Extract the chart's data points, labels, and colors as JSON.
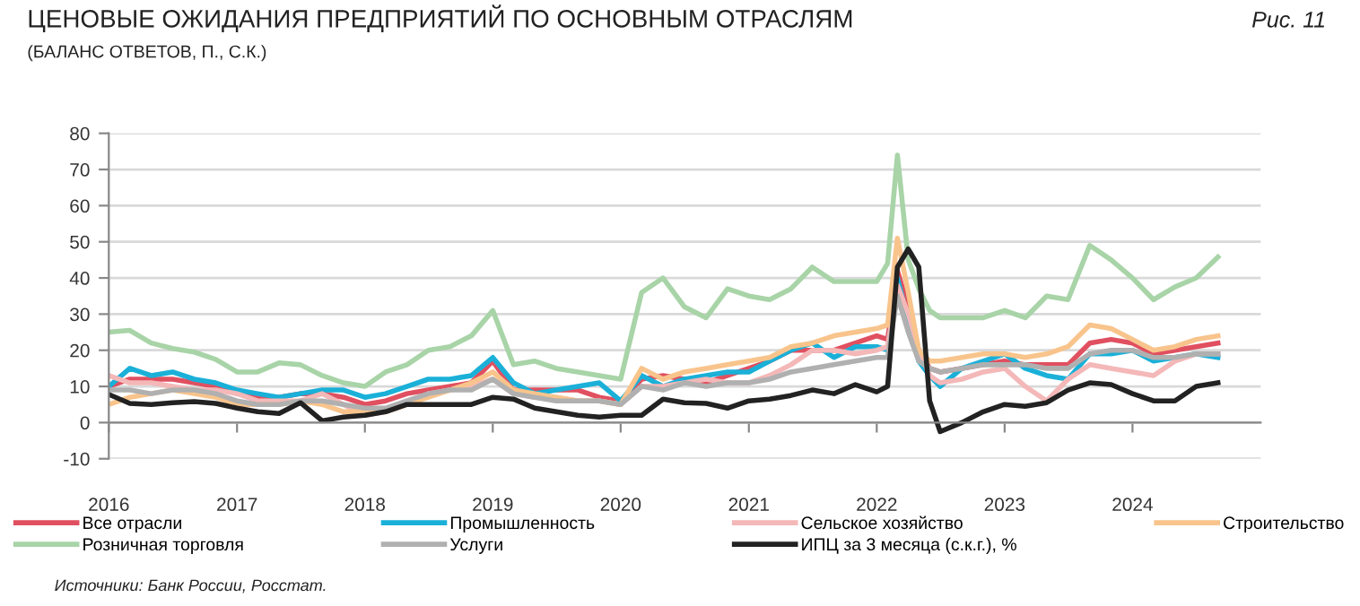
{
  "chart_data": {
    "type": "line",
    "title": "ЦЕНОВЫЕ ОЖИДАНИЯ ПРЕДПРИЯТИЙ ПО ОСНОВНЫМ ОТРАСЛЯМ",
    "subtitle": "(БАЛАНС ОТВЕТОВ, П., С.К.)",
    "annotations": [
      "Рис. 11",
      "Источники: Банк России, Росстат."
    ],
    "x": [
      "2016-01",
      "2016-03",
      "2016-05",
      "2016-07",
      "2016-09",
      "2016-11",
      "2017-01",
      "2017-03",
      "2017-05",
      "2017-07",
      "2017-09",
      "2017-11",
      "2018-01",
      "2018-03",
      "2018-05",
      "2018-07",
      "2018-09",
      "2018-11",
      "2019-01",
      "2019-03",
      "2019-05",
      "2019-07",
      "2019-09",
      "2019-11",
      "2020-01",
      "2020-03",
      "2020-05",
      "2020-07",
      "2020-09",
      "2020-11",
      "2021-01",
      "2021-03",
      "2021-05",
      "2021-07",
      "2021-09",
      "2021-11",
      "2022-01",
      "2022-02",
      "2022-03",
      "2022-04",
      "2022-05",
      "2022-06",
      "2022-07",
      "2022-09",
      "2022-11",
      "2023-01",
      "2023-03",
      "2023-05",
      "2023-07",
      "2023-09",
      "2023-11",
      "2024-01",
      "2024-03",
      "2024-05",
      "2024-07",
      "2024-09"
    ],
    "series": [
      {
        "name": "Все отрасли",
        "color": "#e05060",
        "values": [
          10,
          12,
          12,
          12,
          11,
          10,
          8,
          7,
          7,
          8,
          8,
          7,
          5,
          6,
          8,
          9,
          10,
          11,
          17,
          9,
          9,
          9,
          9,
          7,
          6,
          12,
          13,
          12,
          11,
          13,
          15,
          17,
          20,
          20,
          20,
          22,
          24,
          23,
          42,
          32,
          20,
          15,
          14,
          15,
          16,
          17,
          16,
          16,
          16,
          22,
          23,
          22,
          19,
          20,
          21,
          22
        ]
      },
      {
        "name": "Промышленность",
        "color": "#1ab0d8",
        "values": [
          10,
          15,
          13,
          14,
          12,
          11,
          9,
          8,
          7,
          8,
          9,
          9,
          7,
          8,
          10,
          12,
          12,
          13,
          18,
          11,
          8,
          9,
          10,
          11,
          6,
          13,
          10,
          12,
          13,
          14,
          14,
          17,
          20,
          22,
          18,
          21,
          21,
          20,
          40,
          28,
          17,
          13,
          10,
          15,
          17,
          19,
          15,
          13,
          12,
          19,
          19,
          20,
          17,
          18,
          19,
          18
        ]
      },
      {
        "name": "Сельское хозяйство",
        "color": "#f4b8b8",
        "values": [
          13,
          11,
          11,
          10,
          9,
          9,
          8,
          6,
          6,
          6,
          8,
          5,
          2,
          3,
          5,
          8,
          9,
          10,
          12,
          8,
          7,
          7,
          6,
          6,
          5,
          10,
          10,
          11,
          12,
          11,
          11,
          13,
          16,
          20,
          20,
          19,
          20,
          21,
          38,
          30,
          20,
          13,
          11,
          12,
          14,
          15,
          10,
          6,
          12,
          16,
          15,
          14,
          13,
          17,
          19,
          19
        ]
      },
      {
        "name": "Строительство",
        "color": "#f8c48c",
        "values": [
          5,
          7,
          8,
          9,
          8,
          7,
          5,
          5,
          5,
          6,
          5,
          3,
          3,
          3,
          5,
          7,
          9,
          11,
          14,
          9,
          8,
          7,
          6,
          6,
          5,
          15,
          12,
          14,
          15,
          16,
          17,
          18,
          21,
          22,
          24,
          25,
          26,
          27,
          51,
          36,
          20,
          17,
          17,
          18,
          19,
          19,
          18,
          19,
          21,
          27,
          26,
          23,
          20,
          21,
          23,
          24
        ]
      },
      {
        "name": "Розничная торговля",
        "color": "#a8d4a8",
        "values": [
          25,
          25.5,
          22,
          20.5,
          19.5,
          17.5,
          14,
          14,
          16.5,
          16,
          13,
          11,
          10,
          14,
          16,
          20,
          21,
          24,
          31,
          16,
          17,
          15,
          14,
          13,
          12,
          36,
          40,
          32,
          29,
          37,
          35,
          34,
          37,
          43,
          39,
          39,
          39,
          44,
          74,
          45,
          37,
          31,
          29,
          29,
          29,
          31,
          29,
          35,
          34,
          49,
          45,
          40,
          34,
          37.5,
          40,
          45.8
        ]
      },
      {
        "name": "Услуги",
        "color": "#b0b0b0",
        "values": [
          9,
          9,
          8,
          9,
          9,
          8,
          6,
          5,
          5,
          6,
          6,
          5,
          4,
          4,
          6,
          8,
          9,
          9,
          12,
          8,
          7,
          6,
          6,
          6,
          5,
          10,
          9,
          11,
          10,
          11,
          11,
          12,
          14,
          15,
          16,
          17,
          18,
          18,
          35,
          25,
          17,
          15,
          14,
          15,
          16,
          16,
          16,
          15,
          15,
          19,
          20,
          20,
          18,
          18,
          19,
          19
        ]
      },
      {
        "name": "ИПЦ за 3 месяца (с.к.г.), %",
        "color": "#222222",
        "values": [
          7.8,
          5.3,
          5,
          5.5,
          5.8,
          5.3,
          4,
          3,
          2.5,
          5.5,
          0.5,
          1.5,
          2,
          3,
          5,
          5,
          5,
          5,
          7,
          6.5,
          4,
          3,
          2,
          1.5,
          2,
          2,
          6.5,
          5.5,
          5.3,
          4,
          6,
          6.5,
          7.5,
          9,
          8,
          10.5,
          8.5,
          10,
          43,
          48,
          43,
          6,
          -2.5,
          0,
          3,
          5,
          4.5,
          5.5,
          9,
          11,
          10.5,
          8,
          6,
          6,
          10,
          11
        ]
      }
    ],
    "xlim": [
      "2016-01",
      "2025-01"
    ],
    "xticks": [
      "2016",
      "2017",
      "2018",
      "2019",
      "2020",
      "2021",
      "2022",
      "2023",
      "2024"
    ],
    "ylim": [
      -10,
      80
    ],
    "yticks": [
      -10,
      0,
      10,
      20,
      30,
      40,
      50,
      60,
      70,
      80
    ],
    "grid": "y",
    "legend": "bottom",
    "marker": "none",
    "line_style": "solid"
  }
}
